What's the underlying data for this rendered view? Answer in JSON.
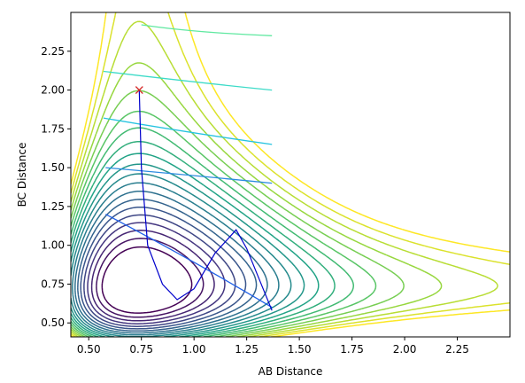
{
  "chart_data": {
    "type": "contour",
    "title": "",
    "xlabel": "AB Distance",
    "ylabel": "BC Distance",
    "xlim": [
      0.415,
      2.5
    ],
    "ylim": [
      0.41,
      2.5
    ],
    "xticks": [
      "0.50",
      "0.75",
      "1.00",
      "1.25",
      "1.50",
      "1.75",
      "2.00",
      "2.25"
    ],
    "yticks": [
      "0.50",
      "0.75",
      "1.00",
      "1.25",
      "1.50",
      "1.75",
      "2.00",
      "2.25"
    ],
    "grid": false,
    "colormap": [
      "#440154",
      "#46327e",
      "#365c8d",
      "#277f8e",
      "#1fa187",
      "#4ac16d",
      "#a0da39",
      "#fde725"
    ],
    "contour_levels": 20,
    "start_marker": {
      "x": 0.74,
      "y": 2.0,
      "symbol": "x",
      "color": "#d62728"
    },
    "trajectory": {
      "color": "#0000cc",
      "points": [
        [
          0.74,
          2.0
        ],
        [
          0.75,
          1.5
        ],
        [
          0.78,
          1.0
        ],
        [
          0.85,
          0.75
        ],
        [
          0.92,
          0.65
        ],
        [
          1.0,
          0.72
        ],
        [
          1.1,
          0.95
        ],
        [
          1.2,
          1.1
        ],
        [
          1.25,
          0.98
        ],
        [
          1.37,
          0.58
        ]
      ]
    },
    "contour_lines": [
      {
        "x": [
          0.75,
          1.0,
          1.37
        ],
        "y": [
          2.42,
          2.37,
          2.35
        ]
      },
      {
        "x": [
          0.57,
          1.0,
          1.37
        ],
        "y": [
          2.12,
          2.05,
          2.0
        ]
      },
      {
        "x": [
          0.57,
          1.0,
          1.37
        ],
        "y": [
          1.82,
          1.72,
          1.65
        ]
      },
      {
        "x": [
          0.58,
          1.0,
          1.37
        ],
        "y": [
          1.5,
          1.45,
          1.4
        ]
      },
      {
        "x": [
          0.58,
          1.0,
          1.37
        ],
        "y": [
          1.2,
          0.9,
          0.6
        ]
      }
    ]
  }
}
